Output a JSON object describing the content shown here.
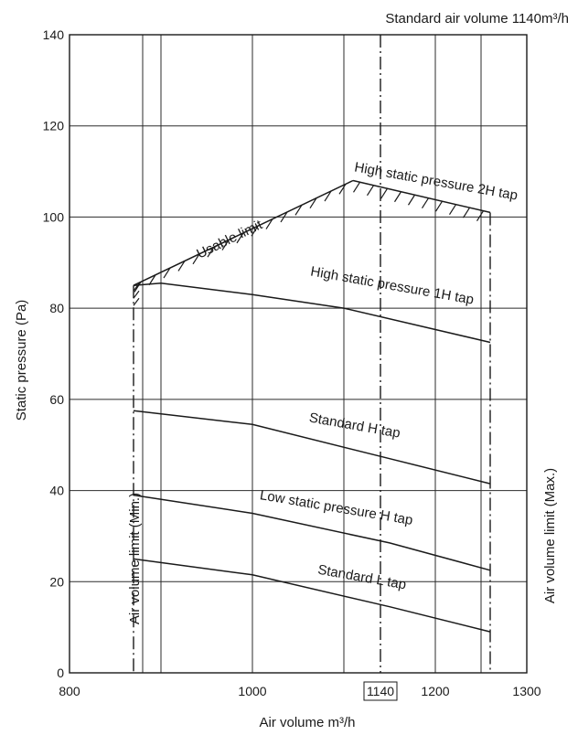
{
  "chart_data": {
    "type": "line",
    "title": "Standard air volume 1140m³/h",
    "xlabel": "Air volume m³/h",
    "ylabel": "Static pressure (Pa)",
    "xlim": [
      800,
      1300
    ],
    "ylim": [
      0,
      140
    ],
    "x_ticks": [
      "800",
      "1000",
      "1140",
      "1200",
      "1300"
    ],
    "y_ticks": [
      "0",
      "20",
      "40",
      "60",
      "80",
      "100",
      "120",
      "140"
    ],
    "highlighted_tick": "1140",
    "x_gridlines": [
      880,
      900,
      1000,
      1100,
      1140,
      1200,
      1250
    ],
    "grid": true,
    "series": [
      {
        "name": "Standard L tap",
        "x": [
          870,
          1000,
          1150,
          1260
        ],
        "y": [
          25,
          21.5,
          14.5,
          9
        ]
      },
      {
        "name": "Low static pressure H tap",
        "x": [
          870,
          1000,
          1150,
          1260
        ],
        "y": [
          39,
          35,
          28.5,
          22.5
        ]
      },
      {
        "name": "Standard H tap",
        "x": [
          870,
          1000,
          1150,
          1260
        ],
        "y": [
          57.5,
          54.5,
          47,
          41.5
        ]
      },
      {
        "name": "High static pressure 1H tap",
        "x": [
          870,
          900,
          1000,
          1100,
          1260
        ],
        "y": [
          85,
          85.5,
          83,
          80,
          72.5
        ]
      },
      {
        "name": "High static pressure 2H tap",
        "x": [
          1110,
          1260
        ],
        "y": [
          108,
          101
        ]
      }
    ],
    "usable_limit": {
      "name": "Usable limit",
      "x": [
        870,
        1110
      ],
      "y": [
        85,
        108
      ]
    },
    "volume_limits": [
      {
        "name": "Air volume limit (Min.)",
        "x": 870
      },
      {
        "name": "Air volume limit (Max.)",
        "x": 1260
      }
    ],
    "standard_volume_marker": 1140
  }
}
